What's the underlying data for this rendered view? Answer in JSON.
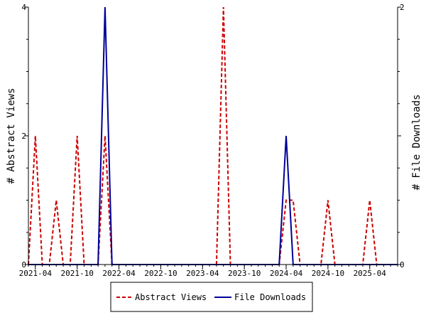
{
  "chart_data": {
    "type": "line",
    "x_tick_labels": [
      "2021-04",
      "2021-10",
      "2022-04",
      "2022-10",
      "2023-04",
      "2023-10",
      "2024-04",
      "2024-10",
      "2025-04"
    ],
    "x": [
      "2021-03",
      "2021-04",
      "2021-05",
      "2021-06",
      "2021-07",
      "2021-08",
      "2021-09",
      "2021-10",
      "2021-11",
      "2021-12",
      "2022-01",
      "2022-02",
      "2022-03",
      "2022-04",
      "2022-05",
      "2022-06",
      "2022-07",
      "2022-08",
      "2022-09",
      "2022-10",
      "2022-11",
      "2022-12",
      "2023-01",
      "2023-02",
      "2023-03",
      "2023-04",
      "2023-05",
      "2023-06",
      "2023-07",
      "2023-08",
      "2023-09",
      "2023-10",
      "2023-11",
      "2023-12",
      "2024-01",
      "2024-02",
      "2024-03",
      "2024-04",
      "2024-05",
      "2024-06",
      "2024-07",
      "2024-08",
      "2024-09",
      "2024-10",
      "2024-11",
      "2024-12",
      "2025-01",
      "2025-02",
      "2025-03",
      "2025-04",
      "2025-05",
      "2025-06",
      "2025-07",
      "2025-08"
    ],
    "y_left": {
      "label": "# Abstract Views",
      "range": [
        0,
        4
      ],
      "ticks": [
        "0",
        "2",
        "4"
      ]
    },
    "y_right": {
      "label": "# File Downloads",
      "range": [
        0,
        2
      ],
      "ticks": [
        "0",
        "1",
        "2"
      ]
    },
    "series": [
      {
        "name": "Abstract Views",
        "axis": "left",
        "color": "#cc0000",
        "style": "dashed",
        "values": [
          0,
          2,
          0,
          0,
          1,
          0,
          0,
          2,
          0,
          0,
          0,
          2,
          0,
          0,
          0,
          0,
          0,
          0,
          0,
          0,
          0,
          0,
          0,
          0,
          0,
          0,
          0,
          0,
          4,
          0,
          0,
          0,
          0,
          0,
          0,
          0,
          0,
          1,
          1,
          0,
          0,
          0,
          0,
          1,
          0,
          0,
          0,
          0,
          0,
          1,
          0,
          0,
          0,
          0
        ]
      },
      {
        "name": "File Downloads",
        "axis": "right",
        "color": "#000099",
        "style": "solid",
        "values": [
          0,
          0,
          0,
          0,
          0,
          0,
          0,
          0,
          0,
          0,
          0,
          2,
          0,
          0,
          0,
          0,
          0,
          0,
          0,
          0,
          0,
          0,
          0,
          0,
          0,
          0,
          0,
          0,
          0,
          0,
          0,
          0,
          0,
          0,
          0,
          0,
          0,
          1,
          0,
          0,
          0,
          0,
          0,
          0,
          0,
          0,
          0,
          0,
          0,
          0,
          0,
          0,
          0,
          0
        ]
      }
    ],
    "legend_placement": "bottom-center",
    "grid": false
  }
}
